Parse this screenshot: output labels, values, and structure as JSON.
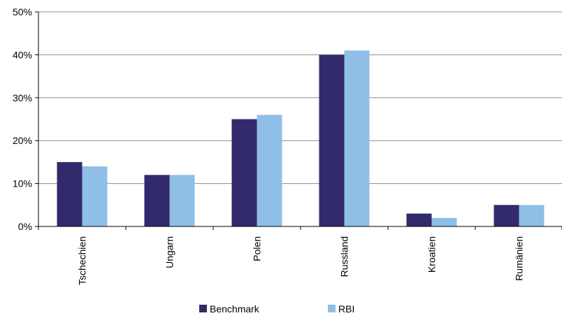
{
  "chart_data": {
    "type": "bar",
    "categories": [
      "Tschechien",
      "Ungarn",
      "Polen",
      "Russland",
      "Kroatien",
      "Rumänien"
    ],
    "series": [
      {
        "name": "Benchmark",
        "values": [
          15,
          12,
          25,
          40,
          3,
          5
        ],
        "color": "#312A6B"
      },
      {
        "name": "RBI",
        "values": [
          14,
          12,
          26,
          41,
          2,
          5
        ],
        "color": "#8FBFE7"
      }
    ],
    "ylim": [
      0,
      50
    ],
    "yticks": [
      0,
      10,
      20,
      30,
      40,
      50
    ],
    "ytick_format": "percent",
    "yunit": "%",
    "grid": true,
    "legend_position": "bottom"
  }
}
